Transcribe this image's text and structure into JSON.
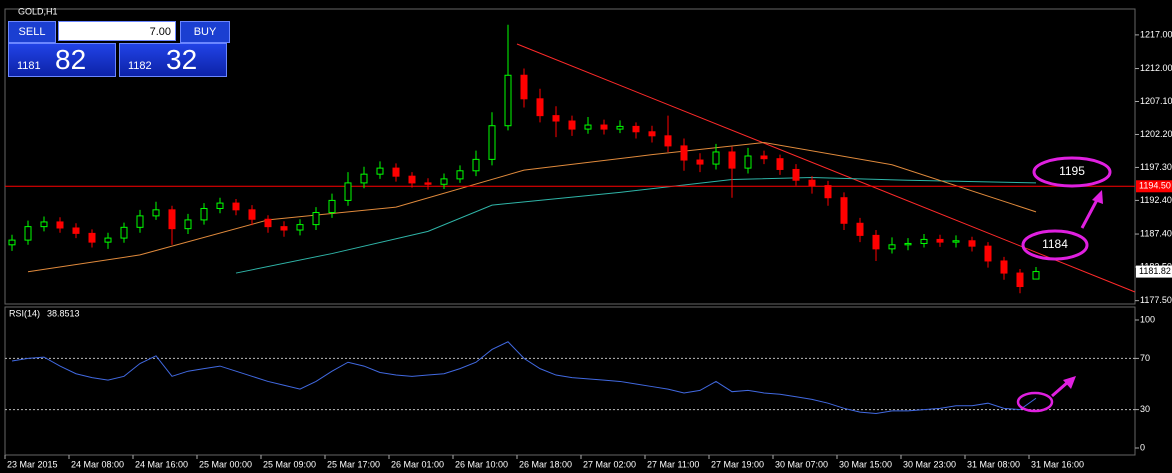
{
  "header": {
    "symbol": "GOLD,H1"
  },
  "trade_panel": {
    "sell": "SELL",
    "buy": "BUY",
    "volume": "7.00",
    "bid_big": "1181",
    "bid_small": "82",
    "ask_big": "1182",
    "ask_small": "32"
  },
  "chart_data": [
    {
      "type": "candlestick",
      "open": [
        1185.8,
        1186.5,
        1188.5,
        1189.2,
        1188.3,
        1187.5,
        1186.2,
        1186.8,
        1188.4,
        1190.1,
        1191.0,
        1188.2,
        1189.5,
        1191.2,
        1192.0,
        1191.0,
        1189.6,
        1188.5,
        1188.0,
        1188.8,
        1190.6,
        1192.4,
        1195.0,
        1196.3,
        1197.2,
        1196.0,
        1195.0,
        1194.8,
        1195.6,
        1196.8,
        1198.5,
        1203.5,
        1211.0,
        1207.5,
        1205.0,
        1204.2,
        1203.0,
        1203.6,
        1203.0,
        1203.4,
        1202.6,
        1202.0,
        1200.5,
        1198.4,
        1197.8,
        1199.6,
        1197.2,
        1199.0,
        1198.6,
        1197.0,
        1195.4,
        1194.6,
        1192.8,
        1189.0,
        1187.2,
        1185.2,
        1185.8,
        1186.0,
        1186.6,
        1186.2,
        1186.4,
        1185.6,
        1183.4,
        1181.6,
        1180.71
      ],
      "high": [
        1187.3,
        1189.4,
        1190.0,
        1189.9,
        1189.0,
        1188.1,
        1187.6,
        1189.1,
        1191.0,
        1192.2,
        1191.6,
        1190.4,
        1192.0,
        1192.8,
        1192.6,
        1191.7,
        1190.2,
        1189.3,
        1189.6,
        1191.4,
        1193.4,
        1196.6,
        1197.4,
        1198.2,
        1197.9,
        1196.6,
        1195.7,
        1196.4,
        1197.6,
        1199.8,
        1205.5,
        1218.5,
        1212.0,
        1209.0,
        1206.4,
        1205.0,
        1204.8,
        1204.4,
        1204.3,
        1204.0,
        1203.5,
        1205.0,
        1201.6,
        1199.4,
        1200.8,
        1200.4,
        1200.2,
        1199.8,
        1199.2,
        1197.8,
        1196.0,
        1195.3,
        1193.6,
        1189.8,
        1188.0,
        1186.9,
        1186.8,
        1187.4,
        1187.3,
        1187.2,
        1187.0,
        1186.2,
        1184.0,
        1182.2,
        1182.5
      ],
      "low": [
        1184.9,
        1185.8,
        1187.8,
        1187.6,
        1186.8,
        1185.4,
        1185.2,
        1186.1,
        1187.6,
        1189.5,
        1185.8,
        1187.4,
        1188.8,
        1190.5,
        1190.2,
        1188.7,
        1187.6,
        1187.0,
        1187.2,
        1188.0,
        1189.8,
        1191.6,
        1194.2,
        1195.6,
        1195.2,
        1194.3,
        1194.0,
        1194.1,
        1195.0,
        1196.0,
        1197.6,
        1202.8,
        1206.2,
        1204.0,
        1201.8,
        1202.0,
        1202.3,
        1202.2,
        1202.4,
        1201.6,
        1201.0,
        1199.6,
        1196.8,
        1196.6,
        1197.0,
        1192.8,
        1196.4,
        1197.8,
        1196.2,
        1194.6,
        1193.4,
        1191.6,
        1188.0,
        1186.2,
        1183.4,
        1184.5,
        1185.0,
        1185.4,
        1185.5,
        1185.4,
        1184.8,
        1182.4,
        1180.6,
        1178.6,
        1180.71
      ],
      "close": [
        1186.5,
        1188.5,
        1189.2,
        1188.3,
        1187.5,
        1186.2,
        1186.8,
        1188.4,
        1190.1,
        1191.0,
        1188.2,
        1189.5,
        1191.2,
        1192.0,
        1191.0,
        1189.6,
        1188.5,
        1188.0,
        1188.8,
        1190.6,
        1192.4,
        1195.0,
        1196.3,
        1197.2,
        1196.0,
        1195.0,
        1194.8,
        1195.6,
        1196.8,
        1198.5,
        1203.5,
        1211.0,
        1207.5,
        1205.0,
        1204.2,
        1203.0,
        1203.6,
        1203.0,
        1203.4,
        1202.6,
        1202.0,
        1200.5,
        1198.4,
        1197.8,
        1199.6,
        1197.2,
        1199.0,
        1198.6,
        1197.0,
        1195.4,
        1194.6,
        1192.8,
        1189.0,
        1187.2,
        1185.2,
        1185.8,
        1186.0,
        1186.6,
        1186.2,
        1186.4,
        1185.6,
        1183.4,
        1181.6,
        1179.6,
        1181.82
      ],
      "up_color": "#00ff00",
      "down_color": "#ff0000",
      "series": [
        {
          "color": "#2fb5a8",
          "x": [
            14,
            20,
            26,
            30,
            38,
            45,
            50,
            56,
            64
          ],
          "values": [
            1181.6,
            1184.5,
            1187.8,
            1191.7,
            1193.6,
            1195.5,
            1195.8,
            1195.4,
            1195.0
          ]
        },
        {
          "color": "#e08a3c",
          "x": [
            1,
            8,
            16,
            24,
            32,
            40,
            47,
            55,
            64
          ],
          "values": [
            1181.8,
            1184.3,
            1189.5,
            1191.4,
            1196.9,
            1199.2,
            1201.0,
            1197.7,
            1190.7
          ]
        }
      ],
      "hline": {
        "value": 1194.5,
        "label": "1194.50",
        "color": "#ff0000"
      },
      "annotations": [
        "1195",
        "1184"
      ],
      "ylim": [
        1177.3,
        1220.7
      ],
      "yticks": [
        {
          "value": 1217,
          "label": "1217.00"
        },
        {
          "value": 1212,
          "label": "1212.00"
        },
        {
          "value": 1207.1,
          "label": "1207.10"
        },
        {
          "value": 1202.2,
          "label": "1202.20"
        },
        {
          "value": 1197.3,
          "label": "1197.30"
        },
        {
          "value": 1192.4,
          "label": "1192.40"
        },
        {
          "value": 1187.4,
          "label": "1187.40"
        },
        {
          "value": 1182.5,
          "label": "1182.50"
        },
        {
          "value": 1177.5,
          "label": "1177.50"
        }
      ],
      "x_labels": [
        "23 Mar 2015",
        "24 Mar 08:00",
        "24 Mar 16:00",
        "25 Mar 00:00",
        "25 Mar 09:00",
        "25 Mar 17:00",
        "26 Mar 01:00",
        "26 Mar 10:00",
        "26 Mar 18:00",
        "27 Mar 02:00",
        "27 Mar 11:00",
        "27 Mar 19:00",
        "30 Mar 07:00",
        "30 Mar 15:00",
        "30 Mar 23:00",
        "31 Mar 08:00",
        "31 Mar 16:00"
      ]
    },
    {
      "type": "line",
      "title": "RSI(14)",
      "color": "#4169e1",
      "values": [
        68,
        70,
        71,
        64,
        58,
        55,
        53,
        56,
        66,
        72,
        56,
        60,
        62,
        64,
        60,
        56,
        52,
        49,
        46,
        52,
        60,
        67,
        64,
        59,
        57,
        56,
        57,
        58,
        62,
        67,
        77,
        83,
        70,
        62,
        57,
        55,
        54,
        53,
        52,
        50,
        48,
        46,
        43,
        45,
        52,
        44,
        45,
        43,
        42,
        40,
        38,
        35,
        31,
        28,
        27,
        29,
        29,
        30,
        31,
        33,
        33,
        35,
        31,
        30,
        38.8513
      ],
      "levels": [
        70,
        30
      ],
      "ylim": [
        0,
        100
      ],
      "yticks": [
        100,
        70,
        30,
        0
      ]
    }
  ]
}
